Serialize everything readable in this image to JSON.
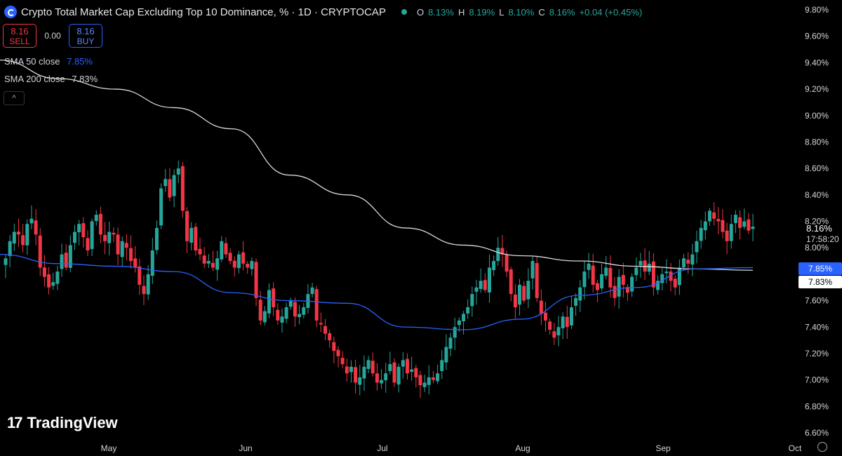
{
  "header": {
    "title": "Crypto Total Market Cap Excluding Top 10 Dominance, % · 1D · CRYPTOCAP",
    "ohlc": [
      {
        "k": "O",
        "v": "8.13%"
      },
      {
        "k": "H",
        "v": "8.19%"
      },
      {
        "k": "L",
        "v": "8.10%"
      },
      {
        "k": "C",
        "v": "8.16%"
      }
    ],
    "change": "+0.04 (+0.45%)"
  },
  "trade": {
    "sell_price": "8.16",
    "sell_label": "SELL",
    "spread": "0.00",
    "buy_price": "8.16",
    "buy_label": "BUY"
  },
  "indicators": {
    "sma50_label": "SMA 50 close",
    "sma50_value": "7.85%",
    "sma200_label": "SMA 200 close",
    "sma200_value": "7.83%"
  },
  "current": {
    "price": "8.16%",
    "countdown": "17:58:20"
  },
  "brand": "TradingView",
  "colors": {
    "up": "#26a69a",
    "down": "#f23645",
    "sma50": "#2962ff",
    "sma200": "#d9d9d9",
    "background": "#000000"
  },
  "chart_data": {
    "type": "candlestick",
    "ylim": [
      6.6,
      9.8
    ],
    "y_ticks": [
      "9.80%",
      "9.60%",
      "9.40%",
      "9.20%",
      "9.00%",
      "8.80%",
      "8.60%",
      "8.40%",
      "8.20%",
      "8.00%",
      "7.60%",
      "7.40%",
      "7.20%",
      "7.00%",
      "6.80%",
      "6.60%"
    ],
    "x_labels": [
      "May",
      "Jun",
      "Jul",
      "Aug",
      "Sep",
      "Oct"
    ],
    "close_series": [
      7.92,
      8.05,
      8.12,
      8.1,
      8.02,
      8.18,
      8.22,
      8.1,
      7.85,
      7.78,
      7.7,
      7.74,
      7.82,
      7.95,
      7.85,
      8.02,
      8.12,
      8.18,
      8.08,
      7.98,
      8.2,
      8.25,
      8.1,
      8.05,
      8.12,
      8.1,
      7.95,
      8.05,
      8.0,
      7.9,
      7.85,
      7.72,
      7.65,
      7.8,
      7.98,
      8.15,
      8.45,
      8.52,
      8.38,
      8.55,
      8.6,
      8.28,
      8.05,
      8.15,
      7.98,
      7.95,
      7.88,
      7.9,
      7.85,
      7.92,
      8.05,
      7.95,
      7.9,
      7.85,
      7.95,
      7.88,
      7.85,
      7.9,
      7.62,
      7.45,
      7.52,
      7.68,
      7.55,
      7.45,
      7.48,
      7.55,
      7.6,
      7.48,
      7.5,
      7.55,
      7.65,
      7.7,
      7.45,
      7.42,
      7.35,
      7.3,
      7.22,
      7.18,
      7.12,
      7.05,
      7.1,
      6.98,
      7.02,
      7.1,
      7.15,
      7.05,
      6.98,
      7.0,
      7.05,
      7.12,
      6.98,
      7.1,
      7.15,
      7.05,
      7.08,
      7.02,
      6.96,
      6.98,
      7.02,
      7.0,
      7.05,
      7.15,
      7.25,
      7.32,
      7.4,
      7.45,
      7.5,
      7.55,
      7.65,
      7.7,
      7.75,
      7.68,
      7.85,
      7.9,
      8.0,
      7.95,
      7.82,
      7.65,
      7.55,
      7.72,
      7.6,
      7.75,
      7.9,
      7.62,
      7.5,
      7.45,
      7.38,
      7.32,
      7.4,
      7.48,
      7.4,
      7.55,
      7.62,
      7.7,
      7.82,
      7.88,
      7.72,
      7.68,
      7.8,
      7.85,
      7.7,
      7.62,
      7.78,
      7.72,
      7.66,
      7.78,
      7.85,
      7.9,
      7.82,
      7.88,
      7.7,
      7.75,
      7.8,
      7.82,
      7.75,
      7.7,
      7.85,
      7.92,
      7.88,
      7.95,
      8.05,
      8.15,
      8.2,
      8.28,
      8.22,
      8.2,
      8.12,
      8.05,
      8.18,
      8.25,
      8.15,
      8.2,
      8.13,
      8.16
    ],
    "sma50": [
      7.95,
      7.88,
      7.86,
      7.82,
      7.66,
      7.6,
      7.58,
      7.4,
      7.38,
      7.46,
      7.64,
      7.7,
      7.84,
      7.85
    ],
    "sma200": [
      9.42,
      9.28,
      9.2,
      9.06,
      8.9,
      8.55,
      8.4,
      8.15,
      8.02,
      7.94,
      7.9,
      7.86,
      7.84,
      7.83
    ]
  }
}
